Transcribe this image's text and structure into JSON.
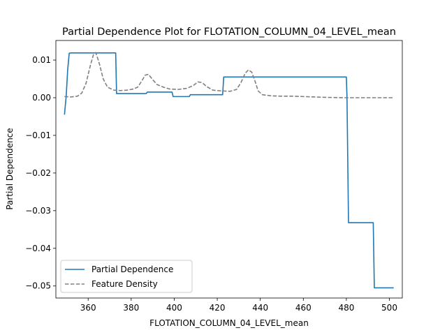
{
  "chart_data": {
    "type": "line",
    "title": "Partial Dependence Plot for FLOTATION_COLUMN_04_LEVEL_mean",
    "xlabel": "FLOTATION_COLUMN_04_LEVEL_mean",
    "ylabel": "Partial Dependence",
    "xlim": [
      345,
      506
    ],
    "ylim": [
      -0.0532,
      0.0152
    ],
    "xticks": [
      360,
      380,
      400,
      420,
      440,
      460,
      480,
      500
    ],
    "yticks": [
      0.01,
      0.0,
      -0.01,
      -0.02,
      -0.03,
      -0.04,
      -0.05
    ],
    "ytick_labels": [
      "0.01",
      "0.00",
      "−0.01",
      "−0.02",
      "−0.03",
      "−0.04",
      "−0.05"
    ],
    "grid": false,
    "legend_position": "lower-left",
    "series": [
      {
        "name": "Partial Dependence",
        "color": "#1f77b4",
        "style": "solid",
        "x": [
          349.0,
          349.8,
          350.5,
          351.2,
          352.0,
          355.0,
          360.0,
          365.0,
          370.0,
          372.8,
          373.2,
          380.0,
          387.0,
          387.5,
          395.0,
          399.0,
          399.5,
          407.0,
          407.5,
          415.0,
          422.5,
          423.0,
          430.0,
          440.0,
          450.0,
          460.0,
          470.0,
          480.0,
          480.3,
          481.0,
          490.0,
          492.5,
          493.0,
          500.0,
          502.0
        ],
        "y": [
          -0.0045,
          0.0005,
          0.0075,
          0.0118,
          0.0119,
          0.0119,
          0.0119,
          0.0119,
          0.0119,
          0.0119,
          0.0011,
          0.0011,
          0.0011,
          0.0015,
          0.0015,
          0.0015,
          0.0003,
          0.0003,
          0.0008,
          0.0008,
          0.0008,
          0.0055,
          0.0055,
          0.0055,
          0.0055,
          0.0055,
          0.0055,
          0.0055,
          0.0,
          -0.0332,
          -0.0332,
          -0.0332,
          -0.0505,
          -0.0505,
          -0.0505
        ]
      },
      {
        "name": "Feature Density",
        "color": "#808080",
        "style": "dashed",
        "x": [
          349,
          352,
          355,
          357,
          359,
          361,
          362.5,
          363.5,
          365,
          367,
          369,
          372,
          375,
          378,
          381,
          383,
          385,
          386.5,
          388,
          390,
          392,
          395,
          398,
          402,
          406,
          409,
          411,
          413,
          415,
          418,
          422,
          426,
          429,
          431,
          433,
          434.5,
          436,
          437.5,
          439,
          441,
          445,
          450,
          455,
          460,
          470,
          480,
          490,
          502
        ],
        "y": [
          0.0003,
          0.0002,
          0.0004,
          0.0012,
          0.0038,
          0.0085,
          0.0115,
          0.012,
          0.0095,
          0.005,
          0.0028,
          0.002,
          0.0019,
          0.002,
          0.0023,
          0.0028,
          0.0045,
          0.006,
          0.0062,
          0.0048,
          0.0035,
          0.0028,
          0.0023,
          0.0022,
          0.0025,
          0.0033,
          0.0042,
          0.004,
          0.003,
          0.002,
          0.0018,
          0.0017,
          0.0022,
          0.004,
          0.0065,
          0.0074,
          0.0068,
          0.0045,
          0.0018,
          0.0008,
          0.0005,
          0.0004,
          0.0004,
          0.0003,
          0.0001,
          0.0,
          0.0,
          0.0
        ]
      }
    ]
  }
}
